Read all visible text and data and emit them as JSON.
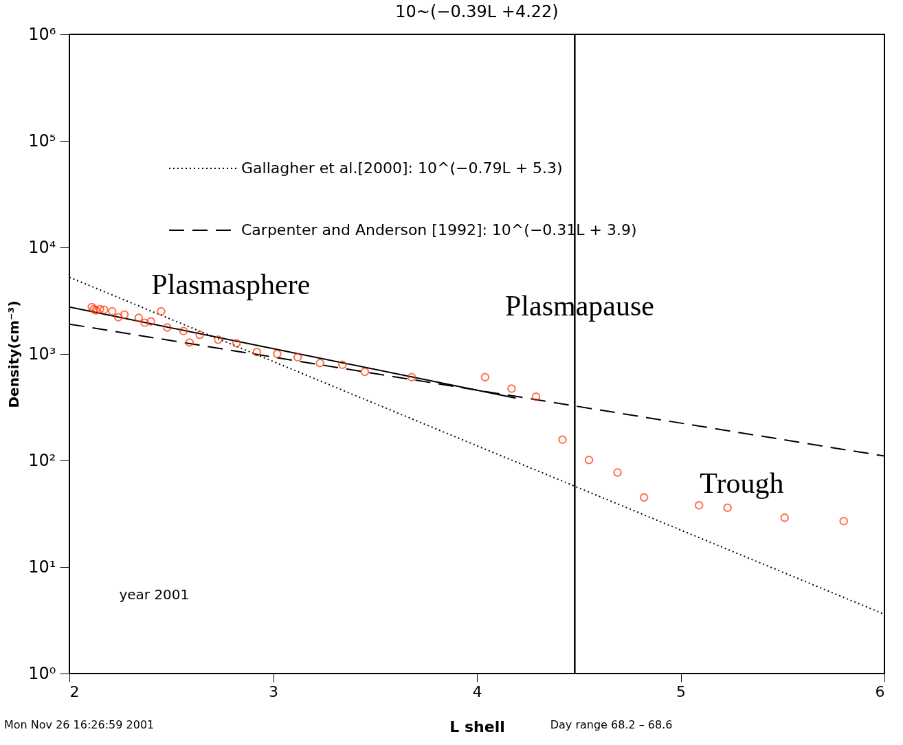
{
  "chart_data": {
    "type": "scatter",
    "title": "10~(−0.39L +4.22)",
    "xlabel": "L shell",
    "ylabel": "Density(cm⁻³)",
    "xlim": [
      2,
      6
    ],
    "xticks": [
      2,
      3,
      4,
      5,
      6
    ],
    "ylim": [
      1,
      1000000
    ],
    "log": "y",
    "yticks": [
      {
        "value": 1,
        "label": "10⁰"
      },
      {
        "value": 10,
        "label": "10¹"
      },
      {
        "value": 100,
        "label": "10²"
      },
      {
        "value": 1000,
        "label": "10³"
      },
      {
        "value": 10000,
        "label": "10⁴"
      },
      {
        "value": 100000,
        "label": "10⁵"
      },
      {
        "value": 1000000,
        "label": "10⁶"
      }
    ],
    "grid": false,
    "legend": "top left",
    "series": [
      {
        "marker": "circle",
        "color": "#ff3300",
        "x": [
          2.11,
          2.12,
          2.13,
          2.15,
          2.17,
          2.21,
          2.24,
          2.27,
          2.34,
          2.37,
          2.4,
          2.45,
          2.48,
          2.56,
          2.59,
          2.64,
          2.73,
          2.82,
          2.92,
          3.02,
          3.12,
          3.23,
          3.34,
          3.45,
          3.68,
          4.04,
          4.17,
          4.29,
          4.42,
          4.55,
          4.69,
          4.82,
          5.09,
          5.23,
          5.51,
          5.8
        ],
        "values": [
          2750,
          2630,
          2570,
          2630,
          2600,
          2510,
          2210,
          2340,
          2180,
          1960,
          2020,
          2510,
          1770,
          1640,
          1280,
          1510,
          1360,
          1260,
          1040,
          1000,
          930,
          820,
          790,
          680,
          605,
          605,
          472,
          396,
          157,
          101,
          77,
          45,
          38,
          36,
          29,
          27
        ]
      },
      {
        "type": "line",
        "line_style": "solid",
        "color": "#000000",
        "x": [
          2,
          4.19
        ],
        "values": [
          2754,
          385
        ]
      },
      {
        "type": "line",
        "line_style": "dotted",
        "color": "#000000",
        "name": "Gallagher et al.[2000]: 10^(−0.79L + 5.3)",
        "x": [
          2,
          6
        ],
        "values": [
          5248,
          3.6
        ]
      },
      {
        "type": "line",
        "line_style": "dashed",
        "color": "#000000",
        "name": "Carpenter and Anderson [1992]: 10^(−0.31L + 3.9)",
        "x": [
          2,
          6
        ],
        "values": [
          1905,
          110
        ]
      }
    ],
    "ref_lines": [
      {
        "axis": "x",
        "value": 4.48,
        "color": "#000000"
      }
    ],
    "annotations": [
      "Plasmasphere",
      "Plasmapause",
      "Trough",
      "year 2001",
      "Mon Nov 26 16:26:59 2001",
      "Day range    68.2 –        68.6"
    ]
  }
}
